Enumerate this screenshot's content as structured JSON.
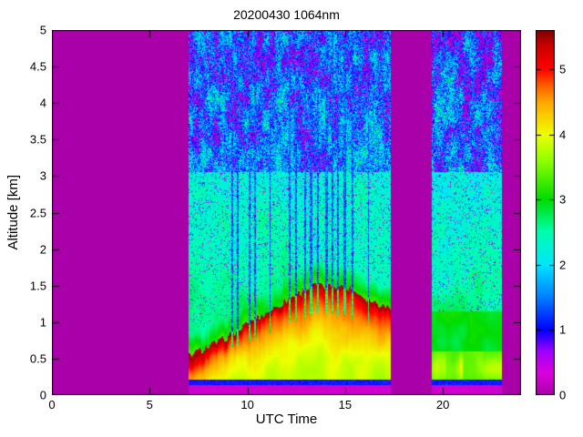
{
  "chart_data": {
    "type": "heatmap",
    "title": "20200430 1064nm",
    "xlabel": "UTC Time",
    "ylabel": "Altitude [km]",
    "xlim": [
      0,
      24
    ],
    "ylim": [
      0,
      5
    ],
    "grid": false,
    "xticks": {
      "values": [
        0,
        5,
        10,
        15,
        20
      ],
      "labels": [
        "0",
        "5",
        "10",
        "15",
        "20"
      ]
    },
    "yticks": {
      "values": [
        0,
        0.5,
        1,
        1.5,
        2,
        2.5,
        3,
        3.5,
        4,
        4.5,
        5
      ],
      "labels": [
        "0",
        "0.5",
        "1",
        "1.5",
        "2",
        "2.5",
        "3",
        "3.5",
        "4",
        "4.5",
        "5"
      ]
    },
    "colorbar": {
      "position": "right",
      "vmax": 5.6,
      "ticks": {
        "values": [
          0,
          1,
          2,
          3,
          4,
          5
        ],
        "labels": [
          "0",
          "1",
          "2",
          "3",
          "4",
          "5"
        ]
      }
    },
    "no_data_color": "#aa00aa",
    "background_value": 0,
    "colormap_stops": [
      [
        0.0,
        170,
        0,
        170
      ],
      [
        0.06,
        220,
        0,
        220
      ],
      [
        0.12,
        160,
        0,
        255
      ],
      [
        0.179,
        0,
        0,
        255
      ],
      [
        0.27,
        0,
        130,
        255
      ],
      [
        0.357,
        0,
        230,
        255
      ],
      [
        0.45,
        0,
        255,
        170
      ],
      [
        0.536,
        0,
        220,
        0
      ],
      [
        0.64,
        140,
        255,
        0
      ],
      [
        0.714,
        240,
        255,
        0
      ],
      [
        0.8,
        255,
        170,
        0
      ],
      [
        0.85,
        255,
        90,
        0
      ],
      [
        0.893,
        255,
        0,
        0
      ],
      [
        0.955,
        205,
        0,
        0
      ],
      [
        1.0,
        128,
        0,
        0
      ]
    ],
    "noise_transition_altitude_km": 3.05,
    "segments": [
      {
        "label": "daytime-observation-period",
        "t_start": 7.0,
        "t_end": 17.32,
        "profile": "convective_boundary_layer",
        "boundary_layer_top_km": [
          [
            7,
            0.55
          ],
          [
            7.5,
            0.6
          ],
          [
            8,
            0.66
          ],
          [
            8.5,
            0.72
          ],
          [
            9,
            0.8
          ],
          [
            9.5,
            0.88
          ],
          [
            10,
            0.98
          ],
          [
            10.5,
            1.05
          ],
          [
            11,
            1.13
          ],
          [
            11.5,
            1.21
          ],
          [
            12,
            1.3
          ],
          [
            12.5,
            1.38
          ],
          [
            13,
            1.45
          ],
          [
            13.5,
            1.51
          ],
          [
            14,
            1.47
          ],
          [
            14.5,
            1.5
          ],
          [
            15,
            1.48
          ],
          [
            15.5,
            1.42
          ],
          [
            16,
            1.34
          ],
          [
            16.5,
            1.28
          ],
          [
            17.32,
            1.2
          ]
        ],
        "bl_top_jitter_km": 0.06,
        "attenuation_columns": [
          [
            9.22,
            0.1
          ],
          [
            9.5,
            0.08
          ],
          [
            10.12,
            0.09
          ],
          [
            10.4,
            0.07
          ],
          [
            11.15,
            0.06
          ],
          [
            12.18,
            0.1
          ],
          [
            12.5,
            0.08
          ],
          [
            12.95,
            0.09
          ],
          [
            13.25,
            0.12
          ],
          [
            13.6,
            0.09
          ],
          [
            14.05,
            0.1
          ],
          [
            14.35,
            0.08
          ],
          [
            14.65,
            0.09
          ],
          [
            14.98,
            0.12
          ],
          [
            15.38,
            0.07
          ],
          [
            16.2,
            0.05
          ]
        ]
      },
      {
        "label": "evening-observation-period",
        "t_start": 19.45,
        "t_end": 23.0,
        "profile": "shallow_layer",
        "boundary_layer_top_km": null,
        "attenuation_columns": []
      }
    ]
  }
}
